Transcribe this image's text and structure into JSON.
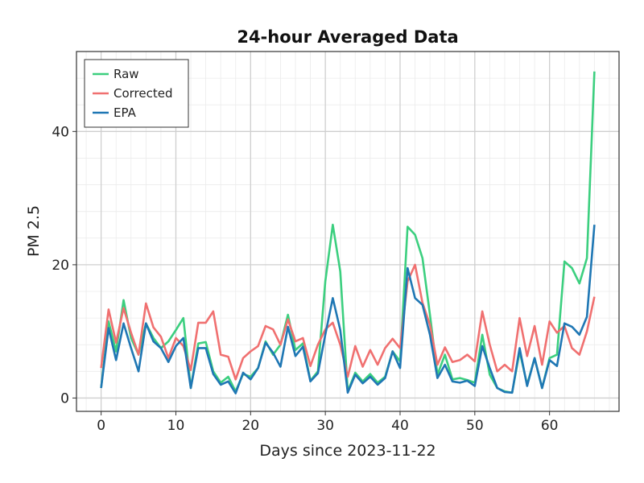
{
  "chart_data": {
    "type": "line",
    "title": "24-hour Averaged Data",
    "xlabel": "Days since 2023-11-22",
    "ylabel": "PM 2.5",
    "xlim": [
      -3.3,
      69.3
    ],
    "ylim": [
      -2,
      52
    ],
    "xticks": [
      0,
      10,
      20,
      30,
      40,
      50,
      60
    ],
    "yticks": [
      0,
      20,
      40
    ],
    "grid": true,
    "minor_grid": true,
    "legend": "top-left",
    "series": [
      {
        "name": "Raw",
        "color": "#3ccf7f",
        "values": [
          1.5,
          11.5,
          7.0,
          14.7,
          9.0,
          6.5,
          11.2,
          9.0,
          7.5,
          8.5,
          10.2,
          12.0,
          1.5,
          8.2,
          8.4,
          4.0,
          2.3,
          3.2,
          1.0,
          3.6,
          3.2,
          4.5,
          8.5,
          6.5,
          8.0,
          12.5,
          7.2,
          8.2,
          2.6,
          4.0,
          17.5,
          26.0,
          19.0,
          1.0,
          3.8,
          2.5,
          3.6,
          2.3,
          3.2,
          7.0,
          5.5,
          25.7,
          24.5,
          21.0,
          12.5,
          3.5,
          6.5,
          2.8,
          3.0,
          2.7,
          2.3,
          9.5,
          3.5,
          1.5,
          1.0,
          0.8,
          7.0,
          2.0,
          6.0,
          1.5,
          6.0,
          6.5,
          20.5,
          19.5,
          17.2,
          21.0,
          49.0
        ]
      },
      {
        "name": "Corrected",
        "color": "#f07070",
        "values": [
          4.5,
          13.3,
          8.3,
          13.5,
          9.8,
          6.5,
          14.2,
          10.6,
          9.2,
          6.0,
          9.0,
          7.8,
          4.2,
          11.3,
          11.3,
          13.0,
          6.5,
          6.2,
          2.8,
          6.0,
          7.0,
          7.8,
          10.8,
          10.3,
          8.0,
          11.8,
          8.5,
          9.0,
          4.8,
          8.0,
          10.3,
          11.3,
          8.0,
          3.2,
          7.8,
          4.7,
          7.2,
          5.0,
          7.5,
          8.9,
          7.5,
          17.5,
          20.0,
          14.3,
          11.0,
          5.0,
          7.6,
          5.4,
          5.7,
          6.5,
          5.5,
          13.0,
          8.0,
          4.0,
          5.0,
          4.0,
          12.0,
          6.3,
          10.8,
          5.0,
          11.5,
          9.8,
          10.8,
          7.5,
          6.5,
          10.0,
          15.2
        ]
      },
      {
        "name": "EPA",
        "color": "#1f77b4",
        "values": [
          1.5,
          10.5,
          5.7,
          11.2,
          7.5,
          4.0,
          11.2,
          8.5,
          7.5,
          5.4,
          7.8,
          9.0,
          1.5,
          7.5,
          7.5,
          3.6,
          2.0,
          2.5,
          0.7,
          3.8,
          2.8,
          4.5,
          8.3,
          6.8,
          4.7,
          10.7,
          6.3,
          7.7,
          2.5,
          3.7,
          9.5,
          15.0,
          10.2,
          0.8,
          3.5,
          2.2,
          3.2,
          2.0,
          3.0,
          7.0,
          4.5,
          19.5,
          15.0,
          14.0,
          9.5,
          3.0,
          5.0,
          2.5,
          2.3,
          2.6,
          1.8,
          7.8,
          4.5,
          1.5,
          0.9,
          0.8,
          7.5,
          1.8,
          6.0,
          1.5,
          5.7,
          4.8,
          11.2,
          10.7,
          9.5,
          12.2,
          26.0
        ]
      }
    ]
  }
}
